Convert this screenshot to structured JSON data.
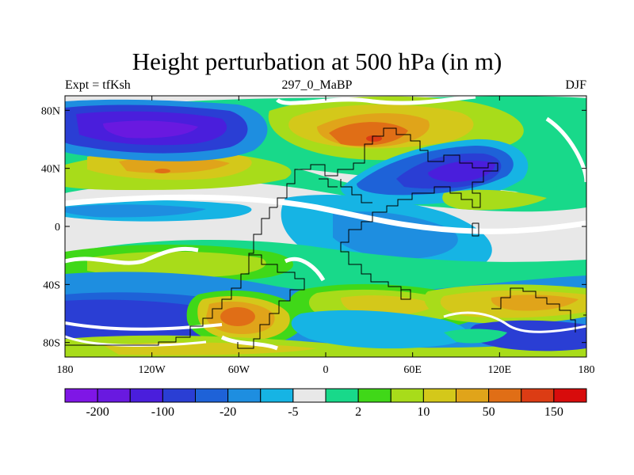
{
  "title": "Height perturbation at 500 hPa (in m)",
  "subtitle_left": "Expt = tfKsh",
  "subtitle_center": "297_0_MaBP",
  "subtitle_right": "DJF",
  "map": {
    "projection": "cylindrical equidistant",
    "lon_range": [
      -180,
      180
    ],
    "lat_range": [
      -90,
      90
    ],
    "lon_ticks": [
      {
        "value": -180,
        "label": "180"
      },
      {
        "value": -120,
        "label": "120W"
      },
      {
        "value": -60,
        "label": "60W"
      },
      {
        "value": 0,
        "label": "0"
      },
      {
        "value": 60,
        "label": "60E"
      },
      {
        "value": 120,
        "label": "120E"
      },
      {
        "value": 180,
        "label": "180"
      }
    ],
    "lat_ticks": [
      {
        "value": 80,
        "label": "80N"
      },
      {
        "value": 40,
        "label": "40N"
      },
      {
        "value": 0,
        "label": "0"
      },
      {
        "value": -40,
        "label": "40S"
      },
      {
        "value": -80,
        "label": "80S"
      }
    ]
  },
  "colorbar": {
    "colors": [
      "#7f16e6",
      "#6919e0",
      "#4a1edc",
      "#2a3ed4",
      "#1e62d8",
      "#1e8ee0",
      "#16b4e4",
      "#e8e8e8",
      "#18d98a",
      "#40d818",
      "#a8dc1a",
      "#d4c81a",
      "#e0a41a",
      "#e06e16",
      "#dc3c14",
      "#d80c0c"
    ],
    "labels": [
      {
        "after_box": 1,
        "text": "-200"
      },
      {
        "after_box": 3,
        "text": "-100"
      },
      {
        "after_box": 5,
        "text": "-20"
      },
      {
        "after_box": 7,
        "text": "-5"
      },
      {
        "after_box": 9,
        "text": "2"
      },
      {
        "after_box": 11,
        "text": "10"
      },
      {
        "after_box": 13,
        "text": "50"
      },
      {
        "after_box": 15,
        "text": "150"
      }
    ]
  }
}
